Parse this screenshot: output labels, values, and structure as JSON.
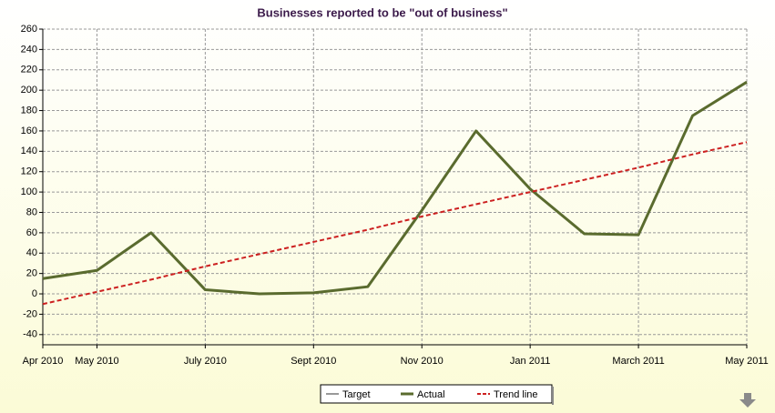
{
  "chart_data": {
    "type": "line",
    "title": "Businesses reported to be \"out of business\"",
    "categories": [
      "Apr 2010",
      "May 2010",
      null,
      "July 2010",
      null,
      "Sept 2010",
      null,
      "Nov 2010",
      null,
      "Jan 2011",
      null,
      "March 2011",
      null,
      "May 2011"
    ],
    "series": [
      {
        "name": "Target",
        "color": "#333333",
        "values": [
          null,
          null,
          null,
          null,
          null,
          null,
          null,
          null,
          null,
          null,
          null,
          null,
          null,
          null
        ]
      },
      {
        "name": "Actual",
        "color": "#5a6b2e",
        "values": [
          15,
          23,
          60,
          4,
          0,
          1,
          7,
          82,
          160,
          103,
          59,
          58,
          175,
          208
        ]
      },
      {
        "name": "Trend line",
        "color": "#cc2020",
        "values": [
          -10,
          2,
          14,
          27,
          39,
          51,
          63,
          76,
          88,
          100,
          112,
          124,
          137,
          149
        ]
      }
    ],
    "ylim": [
      -50,
      260
    ],
    "yticks": [
      -40,
      -20,
      0,
      20,
      40,
      60,
      80,
      100,
      120,
      140,
      160,
      180,
      200,
      220,
      240,
      260
    ],
    "grid": true,
    "legend": "bottom"
  }
}
